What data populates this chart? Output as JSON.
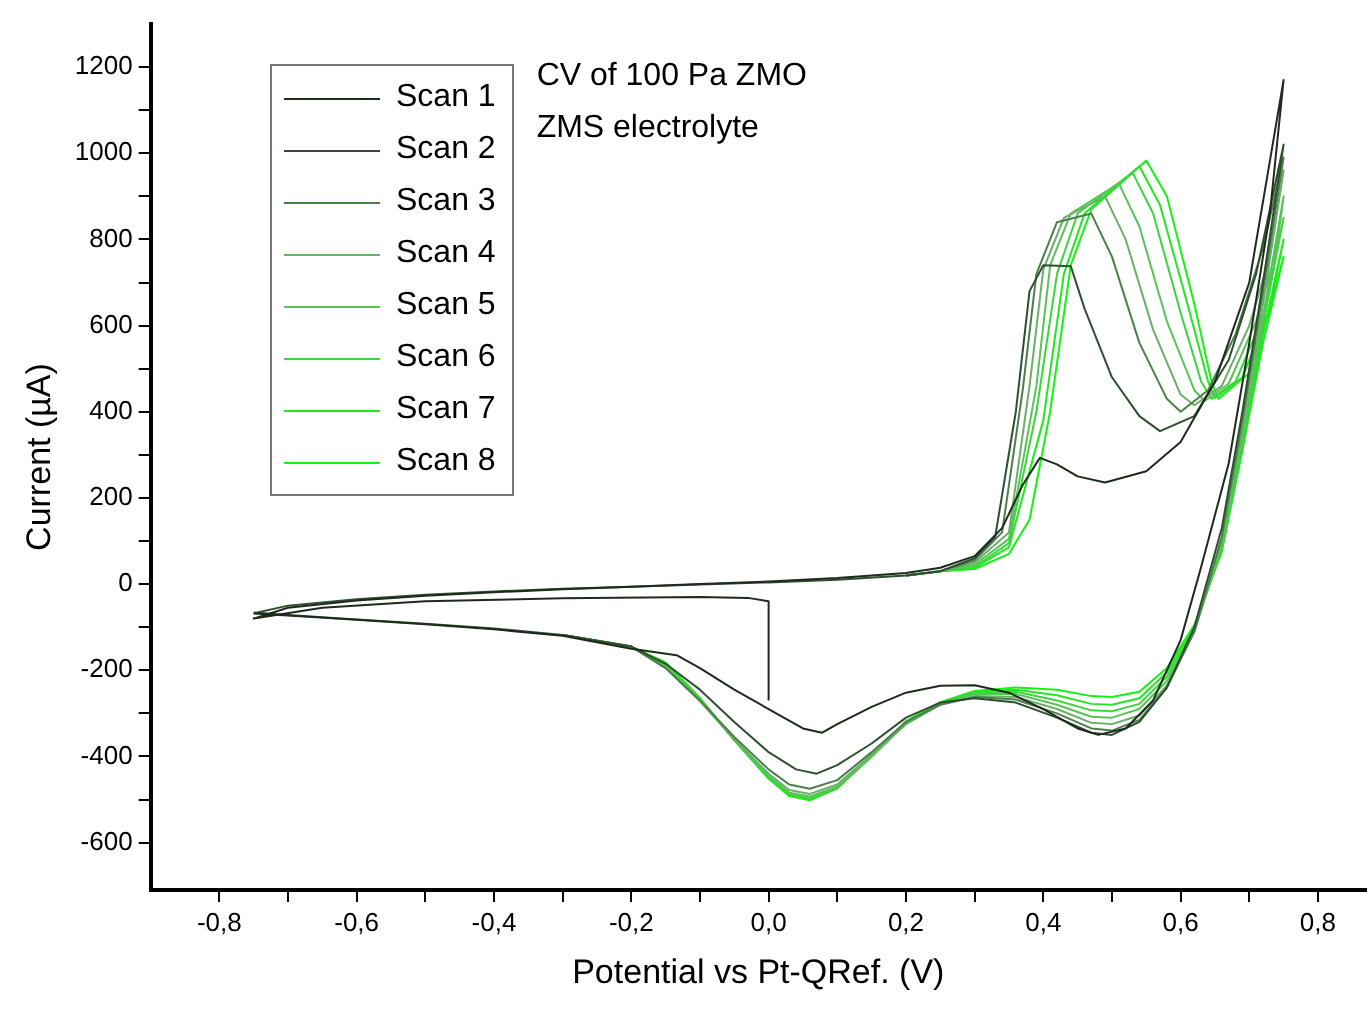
{
  "chart_data": {
    "type": "line",
    "xlabel": "Potential vs Pt-QRef. (V)",
    "ylabel": "Current (µA)",
    "annotations": [
      "CV of 100 Pa ZMO",
      "ZMS electrolyte"
    ],
    "xlim": [
      -0.9,
      0.87
    ],
    "ylim": [
      -710,
      1300
    ],
    "xticks": [
      {
        "value": -0.8,
        "label": "-0,8"
      },
      {
        "value": -0.7,
        "label": null
      },
      {
        "value": -0.6,
        "label": "-0,6"
      },
      {
        "value": -0.5,
        "label": null
      },
      {
        "value": -0.4,
        "label": "-0,4"
      },
      {
        "value": -0.3,
        "label": null
      },
      {
        "value": -0.2,
        "label": "-0,2"
      },
      {
        "value": -0.1,
        "label": null
      },
      {
        "value": 0,
        "label": "0,0"
      },
      {
        "value": 0.1,
        "label": null
      },
      {
        "value": 0.2,
        "label": "0,2"
      },
      {
        "value": 0.3,
        "label": null
      },
      {
        "value": 0.4,
        "label": "0,4"
      },
      {
        "value": 0.5,
        "label": null
      },
      {
        "value": 0.6,
        "label": "0,6"
      },
      {
        "value": 0.7,
        "label": null
      },
      {
        "value": 0.8,
        "label": "0,8"
      }
    ],
    "yticks": [
      -600,
      {
        "value": -500,
        "label": null
      },
      -400,
      {
        "value": -300,
        "label": null
      },
      -200,
      {
        "value": -100,
        "label": null
      },
      0,
      {
        "value": 100,
        "label": null
      },
      200,
      {
        "value": 300,
        "label": null
      },
      400,
      {
        "value": 500,
        "label": null
      },
      600,
      {
        "value": 700,
        "label": null
      },
      800,
      {
        "value": 900,
        "label": null
      },
      1000,
      {
        "value": 1100,
        "label": null
      },
      1200
    ],
    "grid": false,
    "legend": "top left",
    "marker": "none",
    "line_style": "solid",
    "series": [
      {
        "name": "Scan 1",
        "color": "#1e2a1e",
        "x": [
          0,
          0,
          -0.03,
          -0.1,
          -0.3,
          -0.5,
          -0.65,
          -0.75,
          -0.7,
          -0.6,
          -0.5,
          -0.4,
          -0.3,
          -0.2,
          -0.1,
          0,
          0.1,
          0.2,
          0.25,
          0.3,
          0.34,
          0.37,
          0.395,
          0.42,
          0.45,
          0.49,
          0.55,
          0.6,
          0.65,
          0.7,
          0.75,
          0.73,
          0.7,
          0.67,
          0.63,
          0.6,
          0.56,
          0.52,
          0.48,
          0.45,
          0.4,
          0.35,
          0.3,
          0.25,
          0.2,
          0.15,
          0.1,
          0.078,
          0.05,
          0,
          -0.05,
          -0.1,
          -0.134,
          -0.2,
          -0.3,
          -0.4,
          -0.5,
          -0.6,
          -0.7,
          -0.75
        ],
        "values": [
          -270,
          -40,
          -32,
          -30,
          -33,
          -40,
          -55,
          -80,
          -55,
          -38,
          -27,
          -19,
          -12,
          -6,
          0,
          6,
          14,
          26,
          38,
          65,
          130,
          230,
          293,
          278,
          250,
          236,
          262,
          330,
          470,
          700,
          1170,
          860,
          560,
          280,
          40,
          -130,
          -270,
          -335,
          -350,
          -335,
          -290,
          -252,
          -235,
          -236,
          -252,
          -285,
          -325,
          -345,
          -335,
          -290,
          -245,
          -195,
          -165,
          -150,
          -120,
          -105,
          -93,
          -83,
          -73,
          -68
        ]
      },
      {
        "name": "Scan 2",
        "color": "#2e4f2e",
        "x": [
          -0.75,
          -0.7,
          -0.6,
          -0.5,
          -0.4,
          -0.3,
          -0.2,
          -0.1,
          0,
          0.1,
          0.2,
          0.25,
          0.3,
          0.33,
          0.36,
          0.38,
          0.4,
          0.44,
          0.46,
          0.5,
          0.54,
          0.57,
          0.62,
          0.67,
          0.71,
          0.75,
          0.72,
          0.69,
          0.66,
          0.62,
          0.58,
          0.54,
          0.5,
          0.47,
          0.42,
          0.36,
          0.3,
          0.25,
          0.2,
          0.15,
          0.1,
          0.07,
          0.04,
          0,
          -0.05,
          -0.1,
          -0.15,
          -0.2,
          -0.3,
          -0.4,
          -0.5,
          -0.6,
          -0.7,
          -0.75
        ],
        "values": [
          -68,
          -50,
          -35,
          -25,
          -17,
          -11,
          -6,
          -1,
          4,
          10,
          20,
          30,
          60,
          110,
          400,
          680,
          740,
          738,
          640,
          480,
          390,
          355,
          390,
          520,
          720,
          1020,
          700,
          400,
          130,
          -100,
          -240,
          -320,
          -350,
          -345,
          -310,
          -275,
          -265,
          -275,
          -310,
          -370,
          -420,
          -440,
          -430,
          -390,
          -320,
          -245,
          -185,
          -145,
          -118,
          -103,
          -92,
          -82,
          -72,
          -66
        ]
      },
      {
        "name": "Scan 3",
        "color": "#4c7f4c",
        "x": [
          0.2,
          0.25,
          0.3,
          0.34,
          0.37,
          0.39,
          0.42,
          0.47,
          0.5,
          0.54,
          0.58,
          0.6,
          0.64,
          0.68,
          0.72,
          0.75,
          0.72,
          0.69,
          0.66,
          0.62,
          0.58,
          0.54,
          0.5,
          0.47,
          0.42,
          0.36,
          0.3,
          0.25,
          0.2,
          0.15,
          0.1,
          0.06,
          0.03,
          0,
          -0.05,
          -0.1,
          -0.15,
          -0.2,
          -0.3
        ],
        "values": [
          20,
          30,
          55,
          120,
          450,
          720,
          840,
          860,
          760,
          560,
          430,
          400,
          450,
          580,
          780,
          990,
          680,
          380,
          110,
          -110,
          -240,
          -315,
          -340,
          -335,
          -300,
          -268,
          -262,
          -280,
          -320,
          -390,
          -455,
          -475,
          -465,
          -430,
          -355,
          -270,
          -195,
          -145,
          -118
        ]
      },
      {
        "name": "Scan 4",
        "color": "#6aaf6a",
        "x": [
          0.2,
          0.25,
          0.3,
          0.35,
          0.38,
          0.4,
          0.43,
          0.49,
          0.52,
          0.56,
          0.6,
          0.62,
          0.66,
          0.7,
          0.73,
          0.75,
          0.72,
          0.69,
          0.66,
          0.62,
          0.58,
          0.54,
          0.5,
          0.47,
          0.42,
          0.36,
          0.3,
          0.25,
          0.2,
          0.15,
          0.1,
          0.06,
          0.03,
          0,
          -0.05,
          -0.1,
          -0.15,
          -0.2,
          -0.3
        ],
        "values": [
          20,
          30,
          50,
          120,
          460,
          730,
          850,
          900,
          800,
          590,
          440,
          415,
          460,
          600,
          760,
          960,
          650,
          360,
          100,
          -110,
          -235,
          -305,
          -325,
          -322,
          -290,
          -262,
          -260,
          -280,
          -325,
          -395,
          -465,
          -487,
          -478,
          -440,
          -360,
          -272,
          -195,
          -145,
          -118
        ]
      },
      {
        "name": "Scan 5",
        "color": "#58c458",
        "x": [
          0.2,
          0.25,
          0.3,
          0.35,
          0.39,
          0.41,
          0.44,
          0.51,
          0.54,
          0.58,
          0.62,
          0.635,
          0.67,
          0.71,
          0.74,
          0.75,
          0.72,
          0.69,
          0.66,
          0.62,
          0.58,
          0.54,
          0.5,
          0.47,
          0.42,
          0.36,
          0.3,
          0.25,
          0.2,
          0.15,
          0.1,
          0.06,
          0.03,
          0,
          -0.05,
          -0.1,
          -0.15,
          -0.2,
          -0.3
        ],
        "values": [
          20,
          30,
          45,
          105,
          460,
          740,
          860,
          930,
          830,
          610,
          450,
          425,
          465,
          610,
          780,
          900,
          620,
          340,
          90,
          -110,
          -225,
          -290,
          -310,
          -308,
          -280,
          -255,
          -255,
          -278,
          -325,
          -400,
          -470,
          -493,
          -484,
          -445,
          -360,
          -270,
          -192,
          -145,
          -118
        ]
      },
      {
        "name": "Scan 6",
        "color": "#3cd63c",
        "x": [
          0.2,
          0.25,
          0.3,
          0.35,
          0.39,
          0.42,
          0.45,
          0.53,
          0.56,
          0.6,
          0.63,
          0.645,
          0.68,
          0.72,
          0.75,
          0.72,
          0.69,
          0.66,
          0.62,
          0.58,
          0.54,
          0.5,
          0.47,
          0.42,
          0.36,
          0.3,
          0.25,
          0.2,
          0.15,
          0.1,
          0.06,
          0.03,
          0,
          -0.05,
          -0.1,
          -0.15,
          -0.2,
          -0.3
        ],
        "values": [
          20,
          30,
          40,
          95,
          400,
          720,
          860,
          955,
          860,
          630,
          470,
          430,
          470,
          620,
          850,
          600,
          330,
          85,
          -105,
          -215,
          -278,
          -295,
          -293,
          -270,
          -250,
          -252,
          -276,
          -322,
          -400,
          -472,
          -497,
          -488,
          -448,
          -362,
          -268,
          -188,
          -145,
          -118
        ]
      },
      {
        "name": "Scan 7",
        "color": "#22e622",
        "x": [
          0.2,
          0.25,
          0.3,
          0.35,
          0.4,
          0.43,
          0.46,
          0.54,
          0.57,
          0.61,
          0.64,
          0.65,
          0.69,
          0.73,
          0.75,
          0.72,
          0.69,
          0.66,
          0.62,
          0.58,
          0.54,
          0.5,
          0.47,
          0.42,
          0.36,
          0.3,
          0.25,
          0.2,
          0.15,
          0.1,
          0.06,
          0.03,
          0,
          -0.05,
          -0.1,
          -0.15,
          -0.2,
          -0.3
        ],
        "values": [
          20,
          30,
          38,
          85,
          380,
          720,
          860,
          970,
          880,
          650,
          470,
          432,
          480,
          640,
          800,
          580,
          320,
          80,
          -100,
          -205,
          -265,
          -280,
          -278,
          -258,
          -245,
          -250,
          -275,
          -320,
          -400,
          -474,
          -500,
          -490,
          -450,
          -362,
          -266,
          -185,
          -145,
          -118
        ]
      },
      {
        "name": "Scan 8",
        "color": "#10f510",
        "x": [
          0.2,
          0.25,
          0.3,
          0.35,
          0.38,
          0.41,
          0.44,
          0.47,
          0.55,
          0.58,
          0.62,
          0.645,
          0.655,
          0.7,
          0.73,
          0.75,
          0.72,
          0.69,
          0.66,
          0.62,
          0.58,
          0.54,
          0.5,
          0.47,
          0.42,
          0.36,
          0.3,
          0.25,
          0.2,
          0.15,
          0.1,
          0.06,
          0.03,
          0,
          -0.05,
          -0.1,
          -0.15,
          -0.2,
          -0.3
        ],
        "values": [
          20,
          30,
          35,
          70,
          150,
          400,
          740,
          870,
          983,
          900,
          650,
          470,
          430,
          490,
          640,
          760,
          560,
          310,
          75,
          -95,
          -195,
          -250,
          -262,
          -260,
          -245,
          -240,
          -248,
          -274,
          -318,
          -398,
          -474,
          -502,
          -492,
          -452,
          -362,
          -264,
          -182,
          -145,
          -118
        ]
      }
    ]
  }
}
